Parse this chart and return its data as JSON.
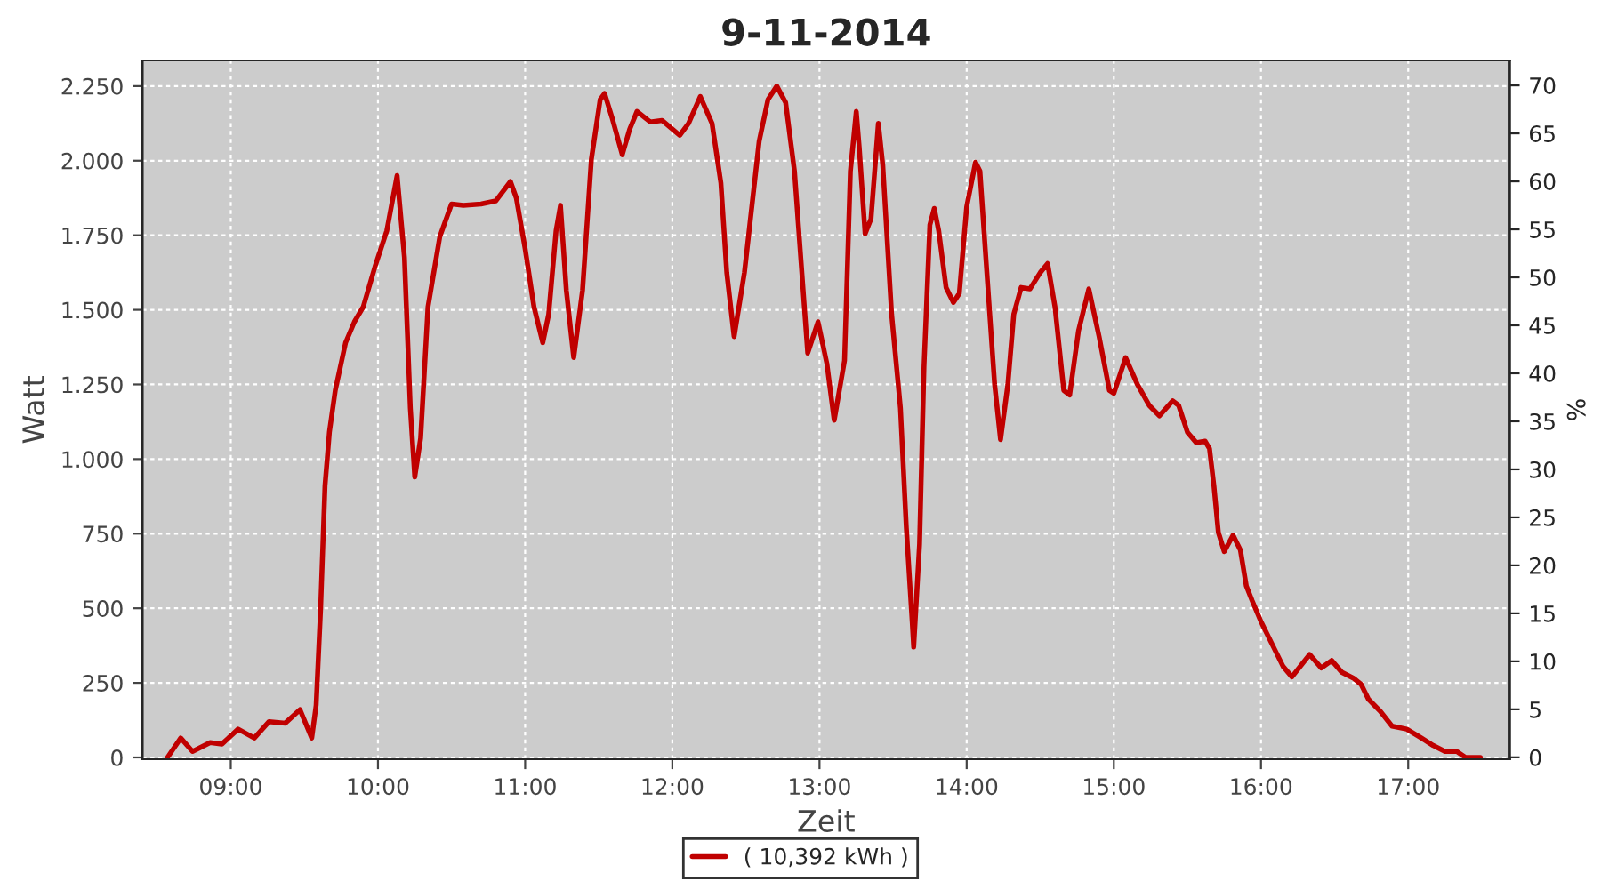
{
  "chart_data": {
    "type": "line",
    "title": "9-11-2014",
    "xlabel": "Zeit",
    "ylabel": "Watt",
    "y2label": "%",
    "xlim": [
      8.4,
      17.69
    ],
    "xticks": [
      {
        "value": 9,
        "label": "09:00"
      },
      {
        "value": 10,
        "label": "10:00"
      },
      {
        "value": 11,
        "label": "11:00"
      },
      {
        "value": 12,
        "label": "12:00"
      },
      {
        "value": 13,
        "label": "13:00"
      },
      {
        "value": 14,
        "label": "14:00"
      },
      {
        "value": 15,
        "label": "15:00"
      },
      {
        "value": 16,
        "label": "16:00"
      },
      {
        "value": 17,
        "label": "17:00"
      }
    ],
    "ylim": [
      -6,
      2336
    ],
    "yticks": [
      0,
      250,
      500,
      750,
      {
        "value": 1000,
        "label": "1.000"
      },
      {
        "value": 1250,
        "label": "1.250"
      },
      {
        "value": 1500,
        "label": "1.500"
      },
      {
        "value": 1750,
        "label": "1.750"
      },
      {
        "value": 2000,
        "label": "2.000"
      },
      {
        "value": 2250,
        "label": "2.250"
      }
    ],
    "y2lim": [
      -0.2,
      72.6
    ],
    "y2ticks": [
      0,
      5,
      10,
      15,
      20,
      25,
      30,
      35,
      40,
      45,
      50,
      55,
      60,
      65,
      70
    ],
    "grid": true,
    "legend": "bottom",
    "series": [
      {
        "name": "( 10,392 kWh )",
        "color": "#c00000",
        "x": [
          8.57,
          8.66,
          8.74,
          8.86,
          8.94,
          9.05,
          9.16,
          9.26,
          9.37,
          9.47,
          9.55,
          9.58,
          9.61,
          9.64,
          9.67,
          9.71,
          9.78,
          9.84,
          9.9,
          9.98,
          10.06,
          10.13,
          10.18,
          10.22,
          10.25,
          10.29,
          10.34,
          10.42,
          10.5,
          10.58,
          10.7,
          10.8,
          10.9,
          10.94,
          11.0,
          11.06,
          11.12,
          11.16,
          11.21,
          11.24,
          11.28,
          11.33,
          11.39,
          11.45,
          11.51,
          11.54,
          11.59,
          11.66,
          11.71,
          11.76,
          11.85,
          11.93,
          12.05,
          12.11,
          12.19,
          12.27,
          12.33,
          12.37,
          12.42,
          12.49,
          12.59,
          12.65,
          12.71,
          12.77,
          12.83,
          12.88,
          12.92,
          12.99,
          13.05,
          13.1,
          13.17,
          13.21,
          13.25,
          13.27,
          13.31,
          13.35,
          13.4,
          13.43,
          13.49,
          13.55,
          13.59,
          13.63,
          13.64,
          13.68,
          13.71,
          13.75,
          13.78,
          13.81,
          13.86,
          13.91,
          13.95,
          14.0,
          14.06,
          14.09,
          14.14,
          14.19,
          14.23,
          14.28,
          14.32,
          14.37,
          14.43,
          14.5,
          14.55,
          14.6,
          14.66,
          14.7,
          14.76,
          14.83,
          14.9,
          14.97,
          15.0,
          15.08,
          15.16,
          15.24,
          15.31,
          15.4,
          15.44,
          15.5,
          15.56,
          15.62,
          15.65,
          15.68,
          15.71,
          15.75,
          15.81,
          15.86,
          15.9,
          15.94,
          16.0,
          16.08,
          16.15,
          16.21,
          16.25,
          16.33,
          16.41,
          16.48,
          16.55,
          16.63,
          16.68,
          16.73,
          16.81,
          16.89,
          16.99,
          17.09,
          17.17,
          17.25,
          17.33,
          17.39,
          17.49
        ],
        "values": [
          0,
          65,
          20,
          50,
          45,
          95,
          65,
          120,
          115,
          160,
          65,
          175,
          495,
          910,
          1090,
          1230,
          1390,
          1460,
          1510,
          1645,
          1765,
          1950,
          1675,
          1170,
          940,
          1070,
          1510,
          1745,
          1855,
          1850,
          1855,
          1865,
          1930,
          1875,
          1705,
          1510,
          1390,
          1485,
          1765,
          1850,
          1565,
          1340,
          1565,
          2005,
          2205,
          2225,
          2145,
          2020,
          2105,
          2165,
          2130,
          2135,
          2085,
          2125,
          2215,
          2125,
          1925,
          1625,
          1410,
          1625,
          2065,
          2205,
          2250,
          2195,
          1965,
          1625,
          1355,
          1460,
          1320,
          1130,
          1330,
          1965,
          2165,
          2045,
          1755,
          1805,
          2125,
          1985,
          1485,
          1170,
          770,
          455,
          370,
          715,
          1310,
          1785,
          1840,
          1765,
          1575,
          1525,
          1555,
          1845,
          1995,
          1965,
          1605,
          1250,
          1065,
          1250,
          1485,
          1575,
          1570,
          1625,
          1655,
          1510,
          1230,
          1215,
          1430,
          1570,
          1410,
          1230,
          1220,
          1340,
          1250,
          1180,
          1145,
          1195,
          1180,
          1090,
          1055,
          1060,
          1035,
          910,
          755,
          690,
          745,
          695,
          575,
          525,
          455,
          375,
          305,
          270,
          295,
          345,
          300,
          325,
          285,
          265,
          245,
          195,
          155,
          105,
          95,
          65,
          40,
          20,
          20,
          0,
          0
        ]
      }
    ]
  }
}
